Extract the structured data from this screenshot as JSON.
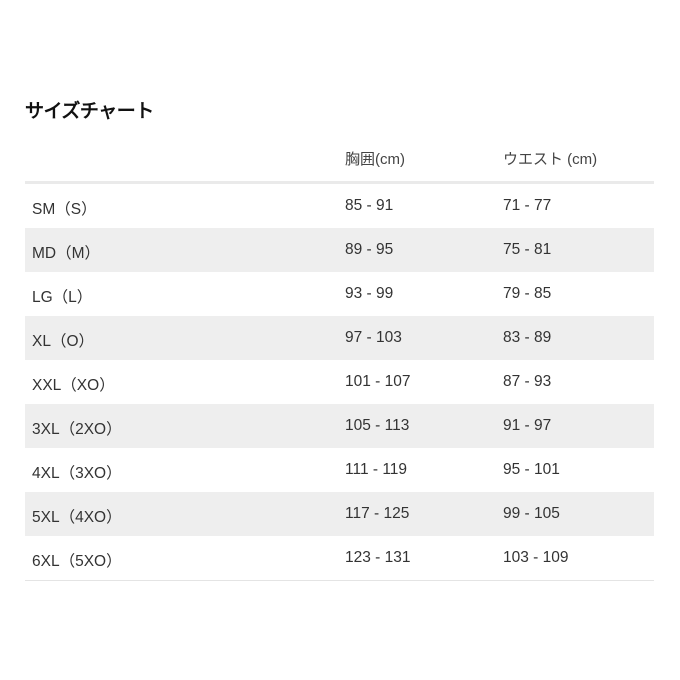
{
  "title": "サイズチャート",
  "columns": [
    "",
    "胸囲(cm)",
    "ウエスト (cm)"
  ],
  "rows": [
    [
      "SM（S）",
      "85 - 91",
      "71 - 77"
    ],
    [
      "MD（M）",
      "89 - 95",
      "75 - 81"
    ],
    [
      "LG（L）",
      "93 - 99",
      "79 - 85"
    ],
    [
      "XL（O）",
      "97 - 103",
      "83 - 89"
    ],
    [
      "XXL（XO）",
      "101 - 107",
      "87 - 93"
    ],
    [
      "3XL（2XO）",
      "105 - 113",
      "91 - 97"
    ],
    [
      "4XL（3XO）",
      "111 - 119",
      "95 - 101"
    ],
    [
      "5XL（4XO）",
      "117 - 125",
      "99 - 105"
    ],
    [
      "6XL（5XO）",
      "123 - 131",
      "103 - 109"
    ]
  ],
  "colors": {
    "stripe": "#eeeeee",
    "text": "#333333"
  }
}
